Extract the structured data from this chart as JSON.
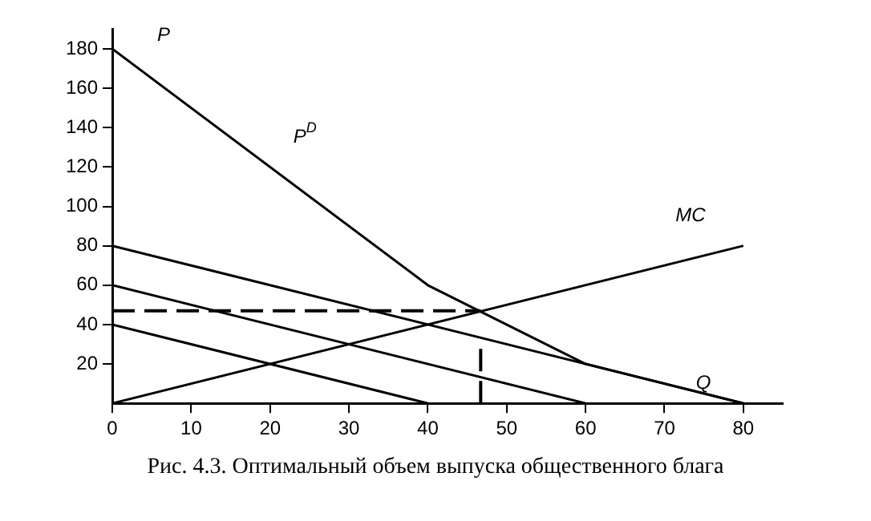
{
  "chart_data": {
    "type": "line",
    "xlabel": "Q",
    "ylabel": "P",
    "xlim": [
      0,
      85
    ],
    "ylim": [
      0,
      190
    ],
    "xticks": [
      0,
      10,
      20,
      30,
      40,
      50,
      60,
      70,
      80
    ],
    "yticks": [
      20,
      40,
      60,
      80,
      100,
      120,
      140,
      160,
      180
    ],
    "grid": false,
    "legend": false,
    "marker": "none",
    "series": [
      {
        "color": "#000000",
        "x": [
          0,
          40
        ],
        "values": [
          40,
          0
        ],
        "line_style": "solid"
      },
      {
        "color": "#000000",
        "x": [
          0,
          60
        ],
        "values": [
          60,
          0
        ],
        "line_style": "solid"
      },
      {
        "color": "#000000",
        "x": [
          0,
          80
        ],
        "values": [
          80,
          0
        ],
        "line_style": "solid"
      },
      {
        "name": "MC",
        "color": "#000000",
        "x": [
          0,
          80
        ],
        "values": [
          0,
          80
        ],
        "line_style": "solid"
      },
      {
        "name": "P$^{D}$",
        "color": "#000000",
        "x": [
          0,
          40,
          60,
          80
        ],
        "values": [
          180,
          60,
          20,
          0
        ],
        "line_style": "solid"
      },
      {
        "color": "#000000",
        "x": [
          0,
          46.7
        ],
        "values": [
          47,
          47
        ],
        "line_style": "dashed"
      },
      {
        "color": "#000000",
        "x": [
          46.7,
          46.7
        ],
        "values": [
          0,
          28
        ],
        "line_style": "dashed"
      }
    ],
    "annotations": [
      "Рис. 4.3. Оптимальный объем выпуска общественного блага"
    ]
  }
}
